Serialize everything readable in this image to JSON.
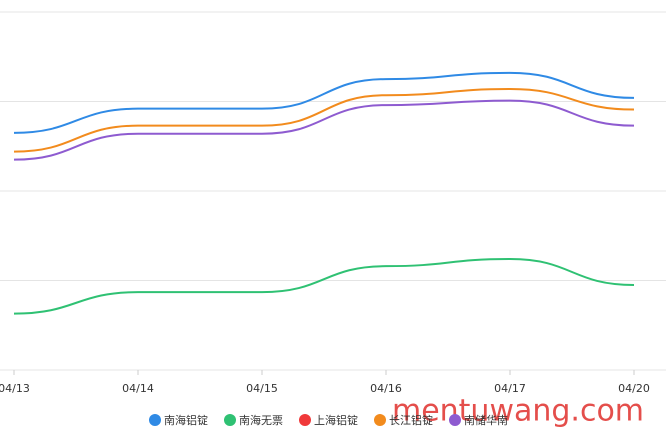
{
  "chart_data": {
    "type": "line",
    "categories": [
      "04/13",
      "04/14",
      "04/15",
      "04/16",
      "04/17",
      "04/20"
    ],
    "ylim": [
      0,
      4
    ],
    "grid_lines": [
      0,
      1,
      2,
      3,
      4
    ],
    "series": [
      {
        "name": "南海铝锭",
        "color": "#2f8ae5",
        "values": [
          2.65,
          2.92,
          2.92,
          3.25,
          3.32,
          3.04
        ]
      },
      {
        "name": "南海无票",
        "color": "#2fc173",
        "values": [
          0.63,
          0.87,
          0.87,
          1.16,
          1.24,
          0.95
        ]
      },
      {
        "name": "上海铝锭",
        "color": "#f0393a",
        "values": [
          null,
          null,
          null,
          null,
          null,
          null
        ]
      },
      {
        "name": "长江铝锭",
        "color": "#f28b1d",
        "values": [
          2.44,
          2.73,
          2.73,
          3.07,
          3.14,
          2.91
        ]
      },
      {
        "name": "南储华南",
        "color": "#8e5bd0",
        "values": [
          2.35,
          2.64,
          2.64,
          2.96,
          3.01,
          2.73
        ]
      }
    ],
    "watermark": "mentuwang.com"
  }
}
